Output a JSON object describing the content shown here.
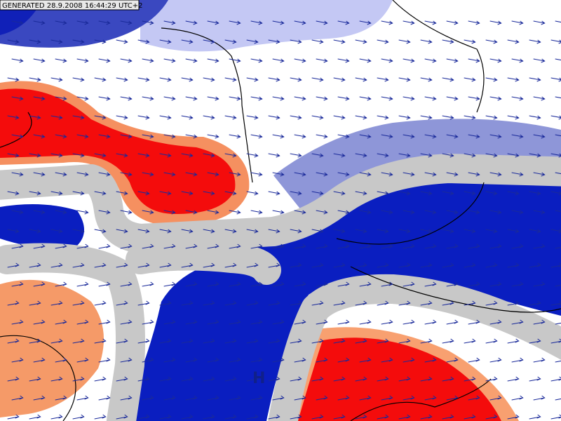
{
  "header": {
    "generated": "GENERATED 28.9.2008 16:44:29 UTC+2"
  },
  "labels": {
    "high": "H"
  }
}
